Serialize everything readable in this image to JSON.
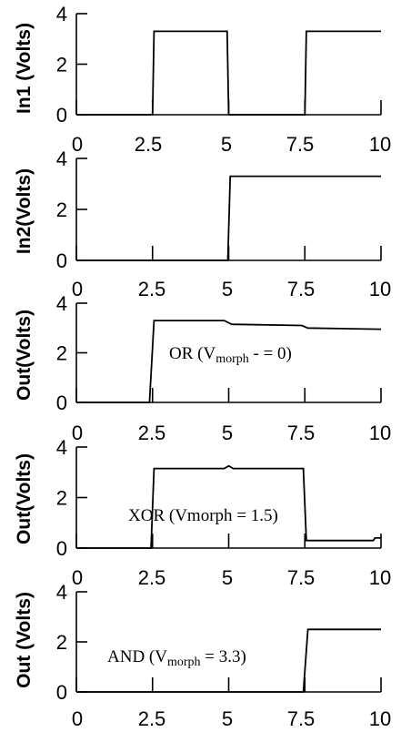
{
  "chart_data": [
    {
      "type": "line",
      "ylabel": "In1 (Volts)",
      "xlim": [
        0,
        10
      ],
      "ylim": [
        0,
        4
      ],
      "xticks": [
        "0",
        "2.5",
        "5",
        "7.5",
        "10"
      ],
      "yticks": [
        "0",
        "2",
        "4"
      ],
      "series": [
        {
          "x": [
            0,
            2.5,
            2.55,
            4.95,
            5.0,
            7.5,
            7.55,
            10
          ],
          "y": [
            0,
            0,
            3.3,
            3.3,
            0,
            0,
            3.3,
            3.3
          ]
        }
      ],
      "annotation": null
    },
    {
      "type": "line",
      "ylabel": "In2(Volts)",
      "xlim": [
        0,
        10
      ],
      "ylim": [
        0,
        4
      ],
      "xticks": [
        "0",
        "2.5",
        "5",
        "7.5",
        "10"
      ],
      "yticks": [
        "0",
        "2",
        "4"
      ],
      "series": [
        {
          "x": [
            0,
            4.97,
            5.05,
            10
          ],
          "y": [
            0,
            0,
            3.3,
            3.3
          ]
        }
      ],
      "annotation": null
    },
    {
      "type": "line",
      "ylabel": "Out(Volts)",
      "xlim": [
        0,
        10
      ],
      "ylim": [
        0,
        4
      ],
      "xticks": [
        "0",
        "2.5",
        "5",
        "7.5",
        "10"
      ],
      "yticks": [
        "0",
        "2",
        "4"
      ],
      "series": [
        {
          "x": [
            0,
            2.4,
            2.55,
            4.85,
            5.1,
            7.4,
            7.6,
            10
          ],
          "y": [
            0,
            0,
            3.3,
            3.3,
            3.15,
            3.1,
            3.0,
            2.95
          ]
        }
      ],
      "annotation": {
        "pre": "OR (V",
        "sub": "morph",
        "post": " - = 0)"
      }
    },
    {
      "type": "line",
      "ylabel": "Out(Volts)",
      "xlim": [
        0,
        10
      ],
      "ylim": [
        0,
        4
      ],
      "xticks": [
        "0",
        "2.5",
        "5",
        "7.5",
        "10"
      ],
      "yticks": [
        "0",
        "2",
        "4"
      ],
      "series": [
        {
          "x": [
            0,
            2.45,
            2.55,
            4.85,
            5.0,
            5.15,
            7.45,
            7.55,
            9.75,
            9.8,
            10
          ],
          "y": [
            0,
            0,
            3.15,
            3.15,
            3.25,
            3.15,
            3.15,
            0.3,
            0.3,
            0.4,
            0.4
          ]
        }
      ],
      "annotation": {
        "pre": "XOR (Vmorph = 1.5)",
        "sub": "",
        "post": ""
      }
    },
    {
      "type": "line",
      "ylabel": "Out (Volts)",
      "xlim": [
        0,
        10
      ],
      "ylim": [
        0,
        4
      ],
      "xticks": [
        "0",
        "2.5",
        "5",
        "7.5",
        "10"
      ],
      "yticks": [
        "0",
        "2",
        "4"
      ],
      "series": [
        {
          "x": [
            0,
            7.45,
            7.6,
            10
          ],
          "y": [
            0,
            0,
            2.5,
            2.5
          ]
        }
      ],
      "annotation": {
        "pre": "AND (V",
        "sub": "morph",
        "post": " = 3.3)"
      }
    }
  ]
}
